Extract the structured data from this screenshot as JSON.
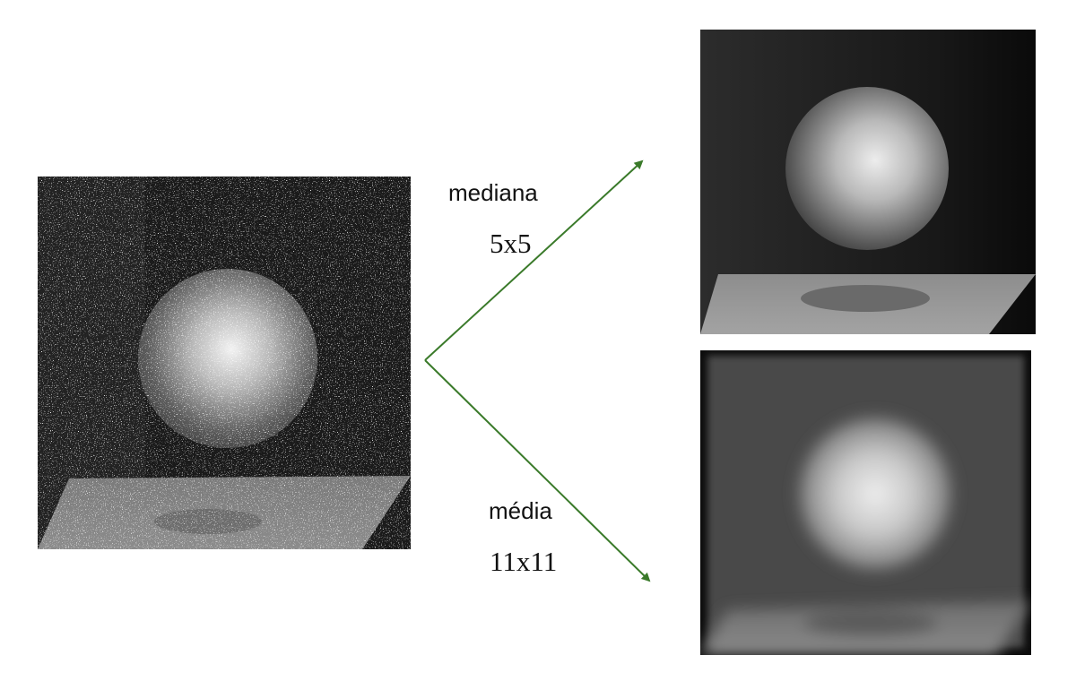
{
  "filters": {
    "median": {
      "name": "mediana",
      "size": "5x5"
    },
    "mean": {
      "name": "média",
      "size": "11x11"
    }
  },
  "colors": {
    "arrow": "#3a7a2a",
    "text": "#111111"
  }
}
